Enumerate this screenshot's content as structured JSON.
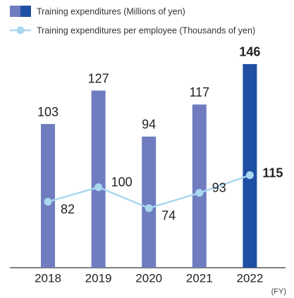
{
  "chart_data": {
    "type": "bar_line",
    "categories": [
      "2018",
      "2019",
      "2020",
      "2021",
      "2022"
    ],
    "x_label": "(FY)",
    "ylim": [
      0,
      150
    ],
    "y2lim": [
      0,
      260
    ],
    "series": [
      {
        "name": "Training expenditures (Millions of yen)",
        "type": "bar",
        "color": "#6f7dc0",
        "colors": [
          "#6f7dc0",
          "#6f7dc0",
          "#6f7dc0",
          "#6f7dc0",
          "#1f4fa3"
        ],
        "label_colors": [
          "#222222",
          "#222222",
          "#222222",
          "#222222",
          "#1f4fa3"
        ],
        "values": [
          103,
          127,
          94,
          117,
          146
        ]
      },
      {
        "name": "Training expenditures per employee (Thousands of yen)",
        "type": "line",
        "axis": "y2",
        "color": "#a9d7ee",
        "label_colors": [
          "#222222",
          "#222222",
          "#222222",
          "#222222",
          "#1f4fa3"
        ],
        "values": [
          82,
          100,
          74,
          93,
          115
        ]
      }
    ]
  }
}
